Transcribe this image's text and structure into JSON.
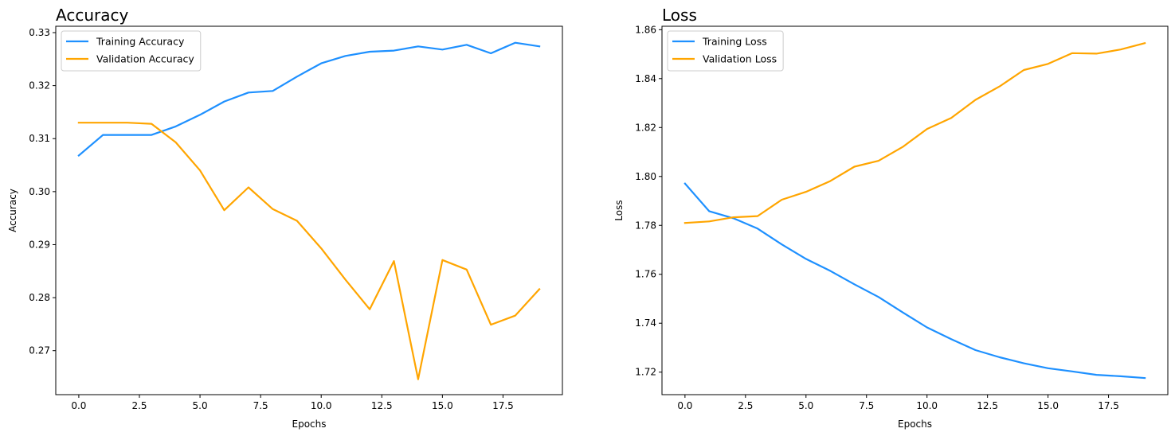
{
  "chart_data": [
    {
      "type": "line",
      "title": "Accuracy",
      "xlabel": "Epochs",
      "ylabel": "Accuracy",
      "x": [
        0,
        1,
        2,
        3,
        4,
        5,
        6,
        7,
        8,
        9,
        10,
        11,
        12,
        13,
        14,
        15,
        16,
        17,
        18,
        19
      ],
      "xlim": [
        -0.95,
        19.95
      ],
      "ylim": [
        0.2617,
        0.3312
      ],
      "xticks": [
        0,
        2.5,
        5,
        7.5,
        10,
        12.5,
        15,
        17.5
      ],
      "xtick_labels": [
        "0.0",
        "2.5",
        "5.0",
        "7.5",
        "10.0",
        "12.5",
        "15.0",
        "17.5"
      ],
      "yticks": [
        0.27,
        0.28,
        0.29,
        0.3,
        0.31,
        0.32,
        0.33
      ],
      "ytick_labels": [
        "0.27",
        "0.28",
        "0.29",
        "0.30",
        "0.31",
        "0.32",
        "0.33"
      ],
      "grid": false,
      "legend": "top-left",
      "series": [
        {
          "name": "Training Accuracy",
          "color": "#1E90FF",
          "values": [
            0.3068,
            0.3107,
            0.3107,
            0.3107,
            0.3123,
            0.3145,
            0.317,
            0.3187,
            0.319,
            0.3217,
            0.3242,
            0.3256,
            0.3264,
            0.3266,
            0.3274,
            0.3268,
            0.3277,
            0.3261,
            0.3281,
            0.3274
          ]
        },
        {
          "name": "Validation Accuracy",
          "color": "#FFA500",
          "values": [
            0.313,
            0.313,
            0.313,
            0.3128,
            0.3093,
            0.304,
            0.2965,
            0.3008,
            0.2967,
            0.2945,
            0.2893,
            0.2834,
            0.2778,
            0.2869,
            0.2646,
            0.2871,
            0.2853,
            0.2749,
            0.2766,
            0.2816
          ]
        }
      ]
    },
    {
      "type": "line",
      "title": "Loss",
      "xlabel": "Epochs",
      "ylabel": "Loss",
      "x": [
        0,
        1,
        2,
        3,
        4,
        5,
        6,
        7,
        8,
        9,
        10,
        11,
        12,
        13,
        14,
        15,
        16,
        17,
        18,
        19
      ],
      "xlim": [
        -0.95,
        19.95
      ],
      "ylim": [
        1.7108,
        1.8614
      ],
      "xticks": [
        0,
        2.5,
        5,
        7.5,
        10,
        12.5,
        15,
        17.5
      ],
      "xtick_labels": [
        "0.0",
        "2.5",
        "5.0",
        "7.5",
        "10.0",
        "12.5",
        "15.0",
        "17.5"
      ],
      "yticks": [
        1.72,
        1.74,
        1.76,
        1.78,
        1.8,
        1.82,
        1.84,
        1.86
      ],
      "ytick_labels": [
        "1.72",
        "1.74",
        "1.76",
        "1.78",
        "1.80",
        "1.82",
        "1.84",
        "1.86"
      ],
      "grid": false,
      "legend": "top-left",
      "series": [
        {
          "name": "Training Loss",
          "color": "#1E90FF",
          "values": [
            1.7971,
            1.7858,
            1.7829,
            1.7787,
            1.7722,
            1.7663,
            1.7614,
            1.7559,
            1.7507,
            1.7444,
            1.7383,
            1.7335,
            1.729,
            1.7261,
            1.7236,
            1.7216,
            1.7203,
            1.7189,
            1.7183,
            1.7176
          ]
        },
        {
          "name": "Validation Loss",
          "color": "#FFA500",
          "values": [
            1.781,
            1.7816,
            1.7833,
            1.7838,
            1.7905,
            1.7937,
            1.7981,
            1.804,
            1.8064,
            1.8121,
            1.8194,
            1.8239,
            1.8313,
            1.8368,
            1.8435,
            1.846,
            1.8504,
            1.8502,
            1.8519,
            1.8545
          ]
        }
      ]
    }
  ]
}
